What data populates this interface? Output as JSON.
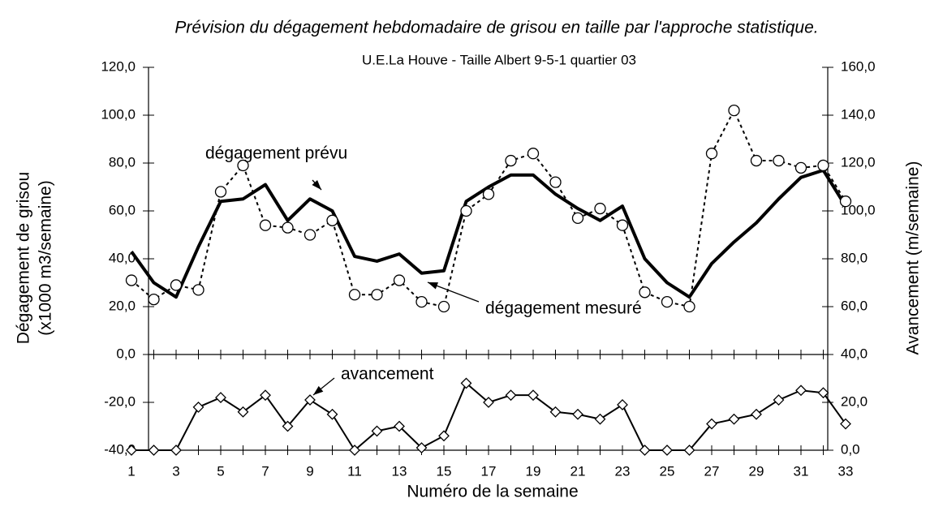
{
  "chart_data": {
    "type": "line",
    "title": "Prévision du dégagement hebdomadaire de grisou en taille par l'approche statistique.",
    "subtitle": "U.E.La Houve - Taille  Albert 9-5-1 quartier 03",
    "xlabel": "Numéro de la semaine",
    "ylabel": [
      "Dégagement de grisou",
      "(x1000 m3/semaine)"
    ],
    "y2label": "Avancement (m/semaine)",
    "x": [
      1,
      2,
      3,
      4,
      5,
      6,
      7,
      8,
      9,
      10,
      11,
      12,
      13,
      14,
      15,
      16,
      17,
      18,
      19,
      20,
      21,
      22,
      23,
      24,
      25,
      26,
      27,
      28,
      29,
      30,
      31,
      32,
      33
    ],
    "xlim": [
      1,
      33
    ],
    "xticks": [
      1,
      3,
      5,
      7,
      9,
      11,
      13,
      15,
      17,
      19,
      21,
      23,
      25,
      27,
      29,
      31,
      33
    ],
    "ylim": [
      -40,
      120
    ],
    "yticks": [
      {
        "value": -40,
        "label": "-40,0"
      },
      {
        "value": -20,
        "label": "-20,0"
      },
      {
        "value": 0,
        "label": "0,0"
      },
      {
        "value": 20,
        "label": "20,0"
      },
      {
        "value": 40,
        "label": "40,0"
      },
      {
        "value": 60,
        "label": "60,0"
      },
      {
        "value": 80,
        "label": "80,0"
      },
      {
        "value": 100,
        "label": "100,0"
      },
      {
        "value": 120,
        "label": "120,0"
      }
    ],
    "y2lim": [
      0,
      160
    ],
    "y2ticks": [
      {
        "value": 0,
        "label": "0,0"
      },
      {
        "value": 20,
        "label": "20,0"
      },
      {
        "value": 40,
        "label": "40,0"
      },
      {
        "value": 60,
        "label": "60,0"
      },
      {
        "value": 80,
        "label": "80,0"
      },
      {
        "value": 100,
        "label": "100,0"
      },
      {
        "value": 120,
        "label": "120,0"
      },
      {
        "value": 140,
        "label": "140,0"
      },
      {
        "value": 160,
        "label": "160,0"
      }
    ],
    "series": [
      {
        "name": "dégagement prévu",
        "color": "#000000",
        "dash": false,
        "marker": "none",
        "width": 4,
        "values": [
          43,
          30,
          24,
          45,
          64,
          65,
          71,
          56,
          65,
          60,
          41,
          39,
          42,
          34,
          35,
          64,
          70,
          75,
          75,
          67,
          61,
          56,
          62,
          40,
          30,
          24,
          38,
          47,
          55,
          65,
          74,
          77,
          62
        ]
      },
      {
        "name": "dégagement mesuré",
        "color": "#000000",
        "dash": true,
        "marker": "circle",
        "width": 2,
        "values": [
          31,
          23,
          29,
          27,
          68,
          79,
          54,
          53,
          50,
          56,
          25,
          25,
          31,
          22,
          20,
          60,
          67,
          81,
          84,
          72,
          57,
          61,
          54,
          26,
          22,
          20,
          84,
          102,
          81,
          81,
          78,
          79,
          64
        ]
      },
      {
        "name": "avancement",
        "color": "#000000",
        "dash": false,
        "marker": "diamond",
        "width": 2,
        "axis": "y2",
        "values": [
          0,
          0,
          0,
          18,
          22,
          16,
          23,
          10,
          21,
          15,
          0,
          8,
          10,
          1,
          6,
          28,
          20,
          23,
          23,
          16,
          15,
          13,
          19,
          0,
          0,
          0,
          11,
          13,
          15,
          21,
          25,
          24,
          11
        ]
      }
    ],
    "legend": false,
    "grid": false
  }
}
